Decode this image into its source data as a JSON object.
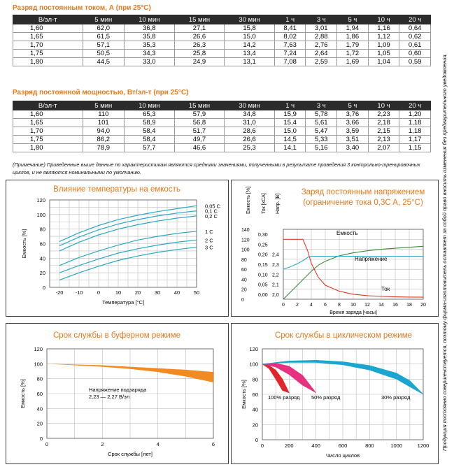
{
  "current_section": {
    "title": "Разряд постоянным током, А (при 25°С)",
    "columns": [
      "В/эл-т",
      "5 мин",
      "10 мин",
      "15 мин",
      "30 мин",
      "1 ч",
      "3 ч",
      "5 ч",
      "10 ч",
      "20 ч"
    ],
    "rows": [
      [
        "1,60",
        "62,0",
        "36,8",
        "27,1",
        "15,8",
        "8,41",
        "3,01",
        "1,94",
        "1,16",
        "0,64"
      ],
      [
        "1,65",
        "61,5",
        "35,8",
        "26,6",
        "15,0",
        "8,02",
        "2,88",
        "1,86",
        "1,12",
        "0,62"
      ],
      [
        "1,70",
        "57,1",
        "35,3",
        "26,3",
        "14,2",
        "7,63",
        "2,76",
        "1,79",
        "1,09",
        "0,61"
      ],
      [
        "1,75",
        "50,5",
        "34,3",
        "25,8",
        "13,4",
        "7,24",
        "2,64",
        "1,72",
        "1,05",
        "0,60"
      ],
      [
        "1,80",
        "44,5",
        "33,0",
        "24,9",
        "13,1",
        "7,08",
        "2,59",
        "1,69",
        "1,04",
        "0,59"
      ]
    ]
  },
  "power_section": {
    "title": "Разряд постоянной мощностью, Вт/эл-т (при 25°С)",
    "columns": [
      "В/эл-т",
      "5 мин",
      "10 мин",
      "15 мин",
      "30 мин",
      "1 ч",
      "3 ч",
      "5 ч",
      "10 ч",
      "20 ч"
    ],
    "rows": [
      [
        "1,60",
        "110",
        "65,3",
        "57,9",
        "34,8",
        "15,9",
        "5,78",
        "3,76",
        "2,23",
        "1,20"
      ],
      [
        "1,65",
        "101",
        "58,9",
        "56,8",
        "31,0",
        "15,4",
        "5,61",
        "3,66",
        "2,18",
        "1,18"
      ],
      [
        "1,70",
        "94,0",
        "58,4",
        "51,7",
        "28,6",
        "15,0",
        "5,47",
        "3,59",
        "2,15",
        "1,18"
      ],
      [
        "1,75",
        "86,2",
        "58,4",
        "49,7",
        "26,6",
        "14,5",
        "5,33",
        "3,51",
        "2,13",
        "1,17"
      ],
      [
        "1,80",
        "78,9",
        "57,7",
        "46,6",
        "25,3",
        "14,1",
        "5,16",
        "3,40",
        "2,07",
        "1,15"
      ]
    ]
  },
  "note": "(Примечание) Приведенные выше данные по характеристикам являются средними значениями, полученными в результате проведения 3 контрольно-тренировочных циклов, и не являются номинальными по умолчанию.",
  "side_note": "Продукция постоянно совершенствуется, поэтому фирма-изготовитель оставляет за собой право вносить изменения без предварительного уведомления.",
  "colors": {
    "accent": "#e8791d",
    "teal": "#2aa8c4",
    "green": "#3a8a3a",
    "red": "#e03a2a"
  },
  "chart_data": [
    {
      "type": "line",
      "title": "Влияние температуры на емкость",
      "xlabel": "Температура [°C]",
      "ylabel": "Емкость [%]",
      "xlim": [
        -25,
        50
      ],
      "ylim": [
        0,
        120
      ],
      "xticks": [
        "-20",
        "-10",
        "0",
        "10",
        "20",
        "30",
        "40",
        "50"
      ],
      "yticks": [
        "0",
        "20",
        "40",
        "60",
        "80",
        "100",
        "120"
      ],
      "x": [
        -20,
        -10,
        0,
        10,
        20,
        30,
        40,
        50
      ],
      "series": [
        {
          "name": "0,05 C",
          "values": [
            63,
            75,
            85,
            93,
            99,
            104,
            108,
            112
          ]
        },
        {
          "name": "0,1 C",
          "values": [
            57,
            69,
            79,
            87,
            93,
            98,
            102,
            105
          ]
        },
        {
          "name": "0,2 C",
          "values": [
            50,
            62,
            72,
            80,
            86,
            91,
            95,
            98
          ]
        },
        {
          "name": "1 C",
          "values": [
            30,
            41,
            50,
            58,
            65,
            70,
            74,
            77
          ]
        },
        {
          "name": "2 C",
          "values": [
            20,
            30,
            39,
            47,
            53,
            58,
            62,
            65
          ]
        },
        {
          "name": "3 C",
          "values": [
            10,
            20,
            29,
            37,
            43,
            48,
            52,
            55
          ]
        }
      ]
    },
    {
      "type": "line",
      "title": "Заряд постоянным напряжением (ограничение тока 0,3C A, 25°C)",
      "xlabel": "Время заряда [часы]",
      "axis_headers": [
        "Емкость [%]",
        "Ток [xCA]",
        "Напр. [В]"
      ],
      "xlim": [
        0,
        20
      ],
      "xticks": [
        "0",
        "2",
        "4",
        "6",
        "8",
        "10",
        "12",
        "14",
        "16",
        "18",
        "20"
      ],
      "capacity_ticks": [
        "0",
        "20",
        "40",
        "60",
        "80",
        "100",
        "120",
        "140"
      ],
      "current_ticks": [
        "0,00",
        "0,05",
        "0,10",
        "0,15",
        "0,20",
        "0,25",
        "0,30"
      ],
      "voltage_ticks": [
        "2,0",
        "2,1",
        "2,2",
        "2,3",
        "2,4"
      ],
      "series": [
        {
          "name": "Емкость",
          "x": [
            0,
            1,
            2,
            3,
            4,
            5,
            6,
            8,
            10,
            12,
            14,
            16,
            18,
            20
          ],
          "values": [
            0,
            14,
            28,
            42,
            56,
            68,
            76,
            87,
            93,
            97,
            100,
            102,
            104,
            106
          ]
        },
        {
          "name": "Напряжение",
          "x": [
            0,
            1,
            2,
            3,
            3.5,
            4,
            6,
            8,
            10,
            12,
            14,
            16,
            18,
            20
          ],
          "values": [
            60,
            65,
            71,
            79,
            84,
            86,
            86,
            86,
            86,
            86,
            86,
            86,
            86,
            86
          ]
        },
        {
          "name": "Ток",
          "x": [
            0,
            1,
            2,
            2.8,
            3.5,
            4,
            5,
            6,
            8,
            10,
            12,
            14,
            16,
            18,
            20
          ],
          "values": [
            0.3,
            0.3,
            0.3,
            0.3,
            0.24,
            0.18,
            0.11,
            0.07,
            0.04,
            0.025,
            0.018,
            0.014,
            0.012,
            0.011,
            0.01
          ]
        }
      ]
    },
    {
      "type": "area",
      "title": "Срок службы в буферном режиме",
      "xlabel": "Срок службы [лет]",
      "ylabel": "Емкость [%]",
      "annotation": "Напряжение подзаряда 2,23 — 2,27 В/эл",
      "xlim": [
        0,
        6
      ],
      "ylim": [
        0,
        120
      ],
      "xticks": [
        "0",
        "2",
        "4",
        "6"
      ],
      "yticks": [
        "0",
        "20",
        "40",
        "60",
        "80",
        "100",
        "120"
      ],
      "x": [
        0,
        1,
        2,
        3,
        4,
        5,
        6
      ],
      "upper": [
        100,
        99,
        98,
        96,
        94,
        92,
        89
      ],
      "lower": [
        100,
        98,
        96,
        93,
        89,
        83,
        75
      ]
    },
    {
      "type": "area",
      "title": "Срок службы в циклическом режиме",
      "xlabel": "Число циклов",
      "ylabel": "Емкость [%]",
      "xlim": [
        0,
        1200
      ],
      "ylim": [
        0,
        120
      ],
      "xticks": [
        "0",
        "200",
        "400",
        "600",
        "800",
        "1000",
        "1200"
      ],
      "yticks": [
        "0",
        "20",
        "40",
        "60",
        "80",
        "100",
        "120"
      ],
      "series": [
        {
          "name": "100% разряд",
          "x": [
            0,
            50,
            100,
            150,
            200
          ],
          "upper": [
            100,
            98,
            92,
            80,
            62
          ],
          "lower": [
            100,
            94,
            80,
            65,
            62
          ]
        },
        {
          "name": "50% разряд",
          "x": [
            0,
            100,
            200,
            300,
            400
          ],
          "upper": [
            100,
            101,
            97,
            85,
            62
          ],
          "lower": [
            100,
            96,
            86,
            72,
            62
          ]
        },
        {
          "name": "30% разряд",
          "x": [
            0,
            200,
            400,
            600,
            800,
            1000,
            1100,
            1200
          ],
          "upper": [
            100,
            104,
            105,
            103,
            98,
            88,
            78,
            60
          ],
          "lower": [
            100,
            102,
            102,
            99,
            92,
            80,
            70,
            60
          ]
        }
      ]
    }
  ]
}
